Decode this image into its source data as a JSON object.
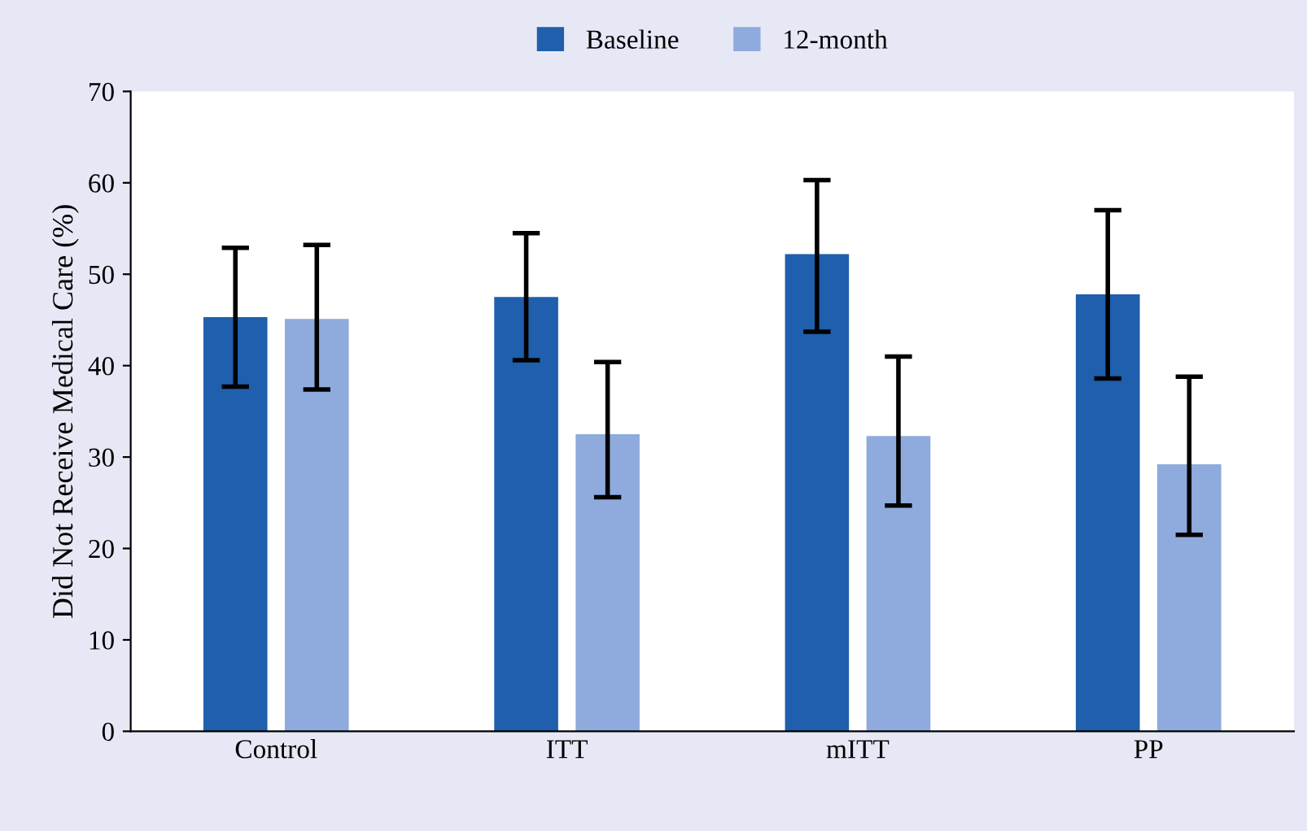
{
  "chart_data": {
    "type": "bar",
    "ylabel": "Did Not Receive Medical Care (%)",
    "categories": [
      "Control",
      "ITT",
      "mITT",
      "PP"
    ],
    "series": [
      {
        "name": "Baseline",
        "color": "#1f5fad",
        "values": [
          45.3,
          47.5,
          52.2,
          47.8
        ],
        "errors": [
          [
            37.7,
            52.9
          ],
          [
            40.6,
            54.5
          ],
          [
            43.7,
            60.3
          ],
          [
            38.6,
            57.0
          ]
        ]
      },
      {
        "name": "12-month",
        "color": "#8faadc",
        "values": [
          45.1,
          32.5,
          32.3,
          29.2
        ],
        "errors": [
          [
            37.4,
            53.2
          ],
          [
            25.6,
            40.4
          ],
          [
            24.7,
            41.0
          ],
          [
            21.5,
            38.8
          ]
        ]
      }
    ],
    "ylim": [
      0,
      70
    ],
    "yticks": [
      0,
      10,
      20,
      30,
      40,
      50,
      60,
      70
    ],
    "grid": false,
    "legend": "top"
  }
}
